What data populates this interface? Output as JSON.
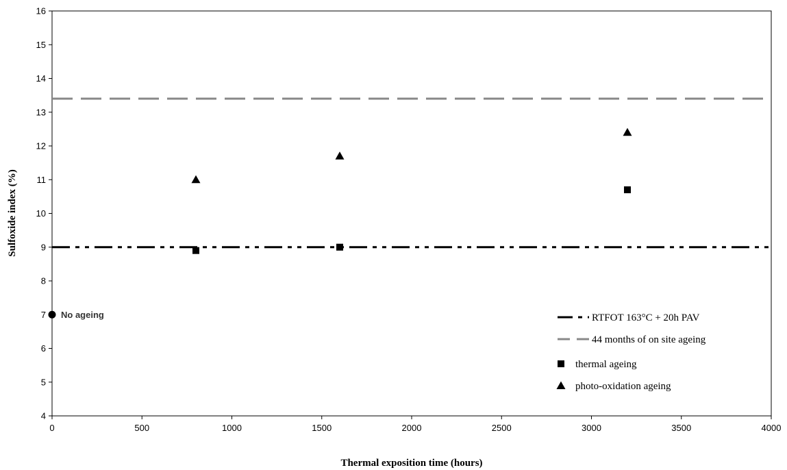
{
  "chart_data": {
    "type": "scatter",
    "xlabel": "Thermal exposition time (hours)",
    "ylabel": "Sulfoxide index (%)",
    "xlim": [
      0,
      4000
    ],
    "ylim": [
      4,
      16
    ],
    "xticks": [
      0,
      500,
      1000,
      1500,
      2000,
      2500,
      3000,
      3500,
      4000
    ],
    "yticks": [
      4,
      5,
      6,
      7,
      8,
      9,
      10,
      11,
      12,
      13,
      14,
      15,
      16
    ],
    "grid": false,
    "legend_position": "bottom-right",
    "reference_lines": [
      {
        "name": "RTFOT 163°C + 20h PAV",
        "y": 9.0,
        "style": "dash-dot-dot",
        "color": "#000000"
      },
      {
        "name": "44 months of on site ageing",
        "y": 13.4,
        "style": "dashed",
        "color": "#888888"
      }
    ],
    "series": [
      {
        "name": "thermal ageing",
        "marker": "square",
        "color": "#000000",
        "x": [
          800,
          1600,
          3200
        ],
        "y": [
          8.9,
          9.0,
          10.7
        ]
      },
      {
        "name": "photo-oxidation ageing",
        "marker": "triangle",
        "color": "#000000",
        "x": [
          800,
          1600,
          3200
        ],
        "y": [
          11.0,
          11.7,
          12.4
        ]
      }
    ],
    "annotations": [
      {
        "text": "No ageing",
        "x": 0,
        "y": 7.0,
        "marker": "circle"
      }
    ]
  }
}
